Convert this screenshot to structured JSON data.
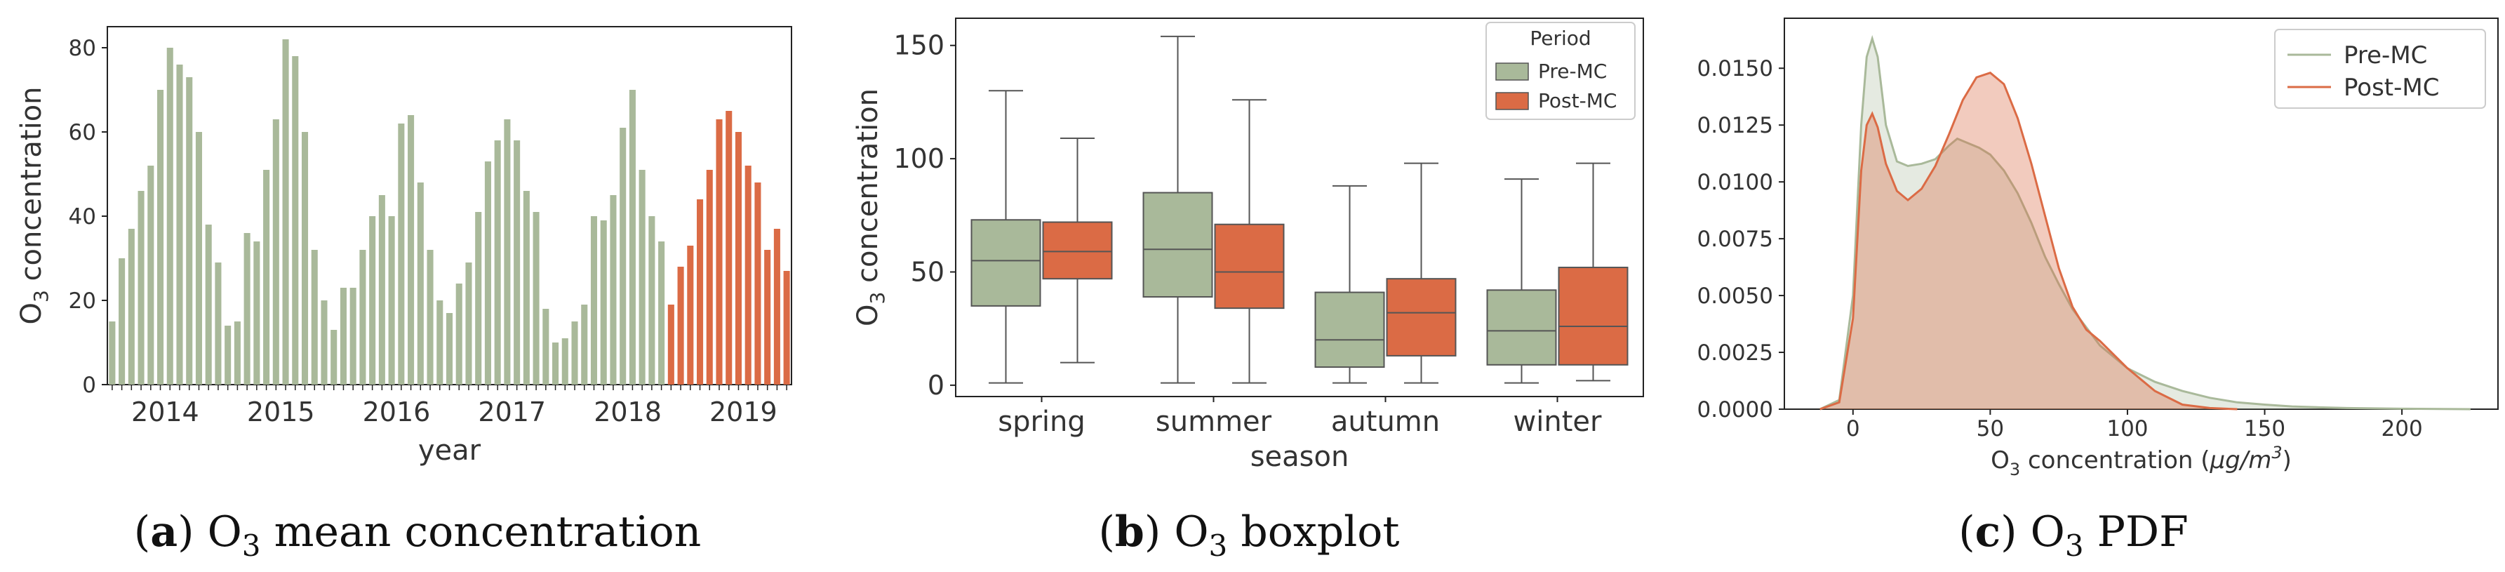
{
  "colors": {
    "pre": "#a9b99a",
    "post": "#db6b45",
    "axis": "#222222",
    "text": "#333333"
  },
  "panels": {
    "a": {
      "caption_letter": "a",
      "caption_text": "O3 mean concentration"
    },
    "b": {
      "caption_letter": "b",
      "caption_text": "O3 boxplot"
    },
    "c": {
      "caption_letter": "c",
      "caption_text": "O3 PDF"
    }
  },
  "chart_data": [
    {
      "type": "bar",
      "xlabel": "year",
      "ylabel": "O3 concentration",
      "ylim": [
        0,
        85
      ],
      "yticks": [
        0,
        20,
        40,
        60,
        80
      ],
      "x_tick_labels": [
        "2014",
        "2015",
        "2016",
        "2017",
        "2018",
        "2019"
      ],
      "series": [
        {
          "name": "Pre-MC",
          "values": [
            15,
            30,
            37,
            46,
            52,
            70,
            80,
            76,
            73,
            60,
            38,
            29,
            14,
            15,
            36,
            34,
            51,
            63,
            82,
            78,
            60,
            32,
            20,
            13,
            23,
            23,
            32,
            40,
            45,
            40,
            62,
            64,
            48,
            32,
            20,
            17,
            24,
            29,
            41,
            53,
            58,
            63,
            58,
            46,
            41,
            18,
            10,
            11,
            15,
            19,
            40,
            39,
            45,
            61,
            70,
            51,
            40,
            34
          ]
        },
        {
          "name": "Post-MC",
          "values": [
            19,
            28,
            33,
            44,
            51,
            63,
            65,
            60,
            52,
            48,
            32,
            37,
            27
          ]
        }
      ]
    },
    {
      "type": "box",
      "xlabel": "season",
      "ylabel": "O3 concentration",
      "ylim": [
        -5,
        162
      ],
      "yticks": [
        0,
        50,
        100,
        150
      ],
      "categories": [
        "spring",
        "summer",
        "autumn",
        "winter"
      ],
      "legend": {
        "title": "Period",
        "position": "top-right"
      },
      "series": [
        {
          "name": "Pre-MC",
          "boxes": [
            {
              "min": 1,
              "q1": 35,
              "median": 55,
              "q3": 73,
              "max": 130
            },
            {
              "min": 1,
              "q1": 39,
              "median": 60,
              "q3": 85,
              "max": 154
            },
            {
              "min": 1,
              "q1": 8,
              "median": 20,
              "q3": 41,
              "max": 88
            },
            {
              "min": 1,
              "q1": 9,
              "median": 24,
              "q3": 42,
              "max": 91
            }
          ]
        },
        {
          "name": "Post-MC",
          "boxes": [
            {
              "min": 10,
              "q1": 47,
              "median": 59,
              "q3": 72,
              "max": 109
            },
            {
              "min": 1,
              "q1": 34,
              "median": 50,
              "q3": 71,
              "max": 126
            },
            {
              "min": 1,
              "q1": 13,
              "median": 32,
              "q3": 47,
              "max": 98
            },
            {
              "min": 2,
              "q1": 9,
              "median": 26,
              "q3": 52,
              "max": 98
            }
          ]
        }
      ]
    },
    {
      "type": "area",
      "xlabel": "O3 concentration (μg/m3)",
      "xlim": [
        -25,
        235
      ],
      "ylim": [
        0,
        0.0172
      ],
      "xticks": [
        0,
        50,
        100,
        150,
        200
      ],
      "yticks": [
        "0.0000",
        "0.0025",
        "0.0050",
        "0.0075",
        "0.0100",
        "0.0125",
        "0.0150"
      ],
      "legend": {
        "position": "top-right"
      },
      "series": [
        {
          "name": "Pre-MC",
          "x": [
            -12,
            -5,
            0,
            3,
            5,
            7,
            9,
            12,
            16,
            20,
            25,
            30,
            35,
            38,
            42,
            46,
            50,
            55,
            60,
            65,
            70,
            75,
            80,
            90,
            100,
            110,
            120,
            130,
            140,
            150,
            160,
            170,
            180,
            200,
            215,
            225
          ],
          "y": [
            0,
            0.0004,
            0.005,
            0.0125,
            0.0155,
            0.0163,
            0.0155,
            0.0125,
            0.0109,
            0.0107,
            0.0108,
            0.011,
            0.0116,
            0.0119,
            0.0117,
            0.0115,
            0.0112,
            0.0105,
            0.0095,
            0.0082,
            0.0067,
            0.0055,
            0.0044,
            0.0028,
            0.0018,
            0.0012,
            0.0008,
            0.0005,
            0.0003,
            0.0002,
            0.00012,
            8e-05,
            5e-05,
            2e-05,
            1e-05,
            0
          ]
        },
        {
          "name": "Post-MC",
          "x": [
            -12,
            -5,
            0,
            3,
            5,
            7,
            9,
            12,
            16,
            20,
            25,
            30,
            35,
            40,
            45,
            50,
            55,
            60,
            65,
            70,
            75,
            80,
            85,
            90,
            100,
            110,
            120,
            130,
            140
          ],
          "y": [
            0,
            0.0003,
            0.004,
            0.0105,
            0.0125,
            0.013,
            0.0124,
            0.0108,
            0.0096,
            0.0092,
            0.0097,
            0.0107,
            0.0121,
            0.0136,
            0.0146,
            0.0148,
            0.0143,
            0.0128,
            0.0108,
            0.0085,
            0.0062,
            0.0045,
            0.0035,
            0.003,
            0.0018,
            0.0008,
            0.0002,
            5e-05,
            0
          ]
        }
      ]
    }
  ]
}
